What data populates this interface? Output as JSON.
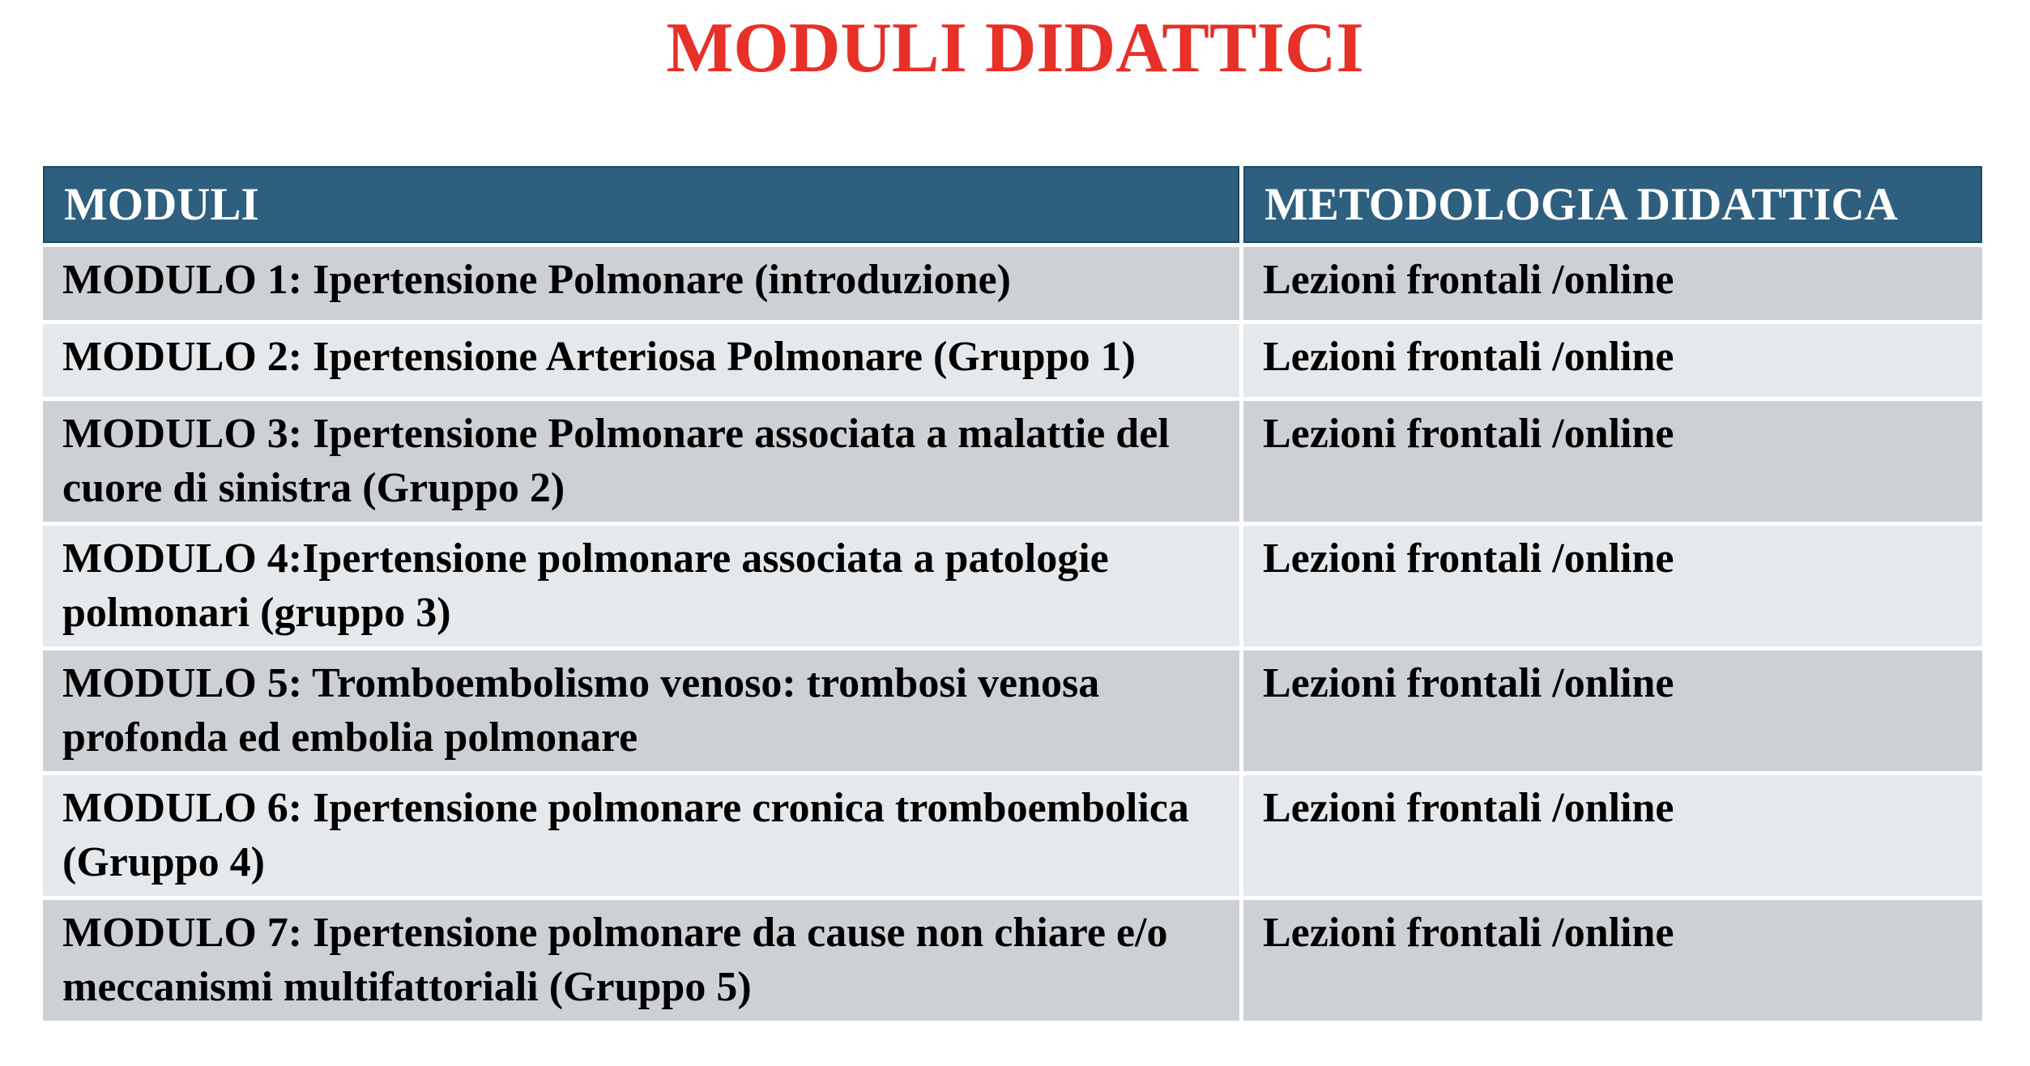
{
  "page": {
    "title": "MODULI DIDATTICI"
  },
  "colors": {
    "title_red": "#e73027",
    "header_bg": "#2e5f7e",
    "header_border": "#1c4a66",
    "header_text": "#ffffff",
    "row_dark_gray": "#cdd1d5",
    "row_light_gray": "#e6e9ec",
    "cell_text": "#000000"
  },
  "table": {
    "columns": [
      {
        "label": "MODULI"
      },
      {
        "label": "METODOLOGIA DIDATTICA"
      }
    ],
    "rows": [
      {
        "modulo": "MODULO 1: Ipertensione Polmonare (introduzione)",
        "metodologia": "Lezioni frontali /online"
      },
      {
        "modulo": "MODULO 2: Ipertensione Arteriosa Polmonare (Gruppo 1)",
        "metodologia": "Lezioni frontali /online"
      },
      {
        "modulo": "MODULO 3: Ipertensione Polmonare associata a malattie del cuore di sinistra (Gruppo 2)",
        "metodologia": "Lezioni frontali /online"
      },
      {
        "modulo": "MODULO 4:Ipertensione polmonare associata a patologie polmonari (gruppo 3)",
        "metodologia": "Lezioni frontali /online"
      },
      {
        "modulo": "MODULO 5: Tromboembolismo venoso: trombosi venosa profonda ed embolia polmonare",
        "metodologia": "Lezioni frontali /online"
      },
      {
        "modulo": "MODULO 6: Ipertensione polmonare cronica tromboembolica (Gruppo 4)",
        "metodologia": "Lezioni frontali /online"
      },
      {
        "modulo": "MODULO 7: Ipertensione polmonare da cause non chiare e/o meccanismi multifattoriali (Gruppo 5)",
        "metodologia": "Lezioni frontali /online"
      }
    ]
  }
}
